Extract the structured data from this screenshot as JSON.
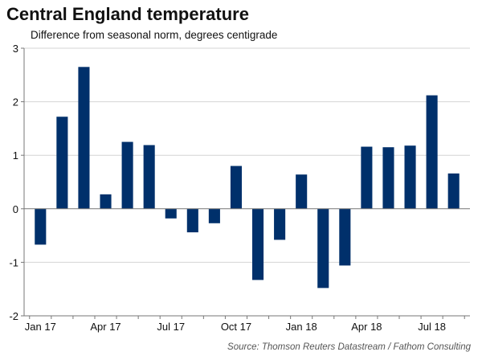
{
  "header": {
    "title": "Central England temperature",
    "subtitle": "Difference from seasonal norm, degrees centigrade"
  },
  "footer": {
    "source": "Source: Thomson Reuters Datastream / Fathom Consulting"
  },
  "colors": {
    "bar": "#00306b",
    "grid": "#d4d4d4",
    "axis": "#777777"
  },
  "chart_data": {
    "type": "bar",
    "title": "Central England temperature",
    "subtitle": "Difference from seasonal norm, degrees centigrade",
    "xlabel": "",
    "ylabel": "",
    "ylim": [
      -2,
      3
    ],
    "yticks": [
      -2,
      -1,
      0,
      1,
      2,
      3
    ],
    "grid": true,
    "categories": [
      "Jan 17",
      "Feb 17",
      "Mar 17",
      "Apr 17",
      "May 17",
      "Jun 17",
      "Jul 17",
      "Aug 17",
      "Sep 17",
      "Oct 17",
      "Nov 17",
      "Dec 17",
      "Jan 18",
      "Feb 18",
      "Mar 18",
      "Apr 18",
      "May 18",
      "Jun 18",
      "Jul 18",
      "Aug 18"
    ],
    "values": [
      -0.67,
      1.72,
      2.65,
      0.27,
      1.25,
      1.19,
      -0.18,
      -0.44,
      -0.27,
      0.8,
      -1.33,
      -0.58,
      0.64,
      -1.48,
      -1.06,
      1.16,
      1.15,
      1.18,
      2.12,
      0.66
    ],
    "xtick_labels": [
      {
        "index": 0,
        "label": "Jan 17"
      },
      {
        "index": 3,
        "label": "Apr 17"
      },
      {
        "index": 6,
        "label": "Jul 17"
      },
      {
        "index": 9,
        "label": "Oct 17"
      },
      {
        "index": 12,
        "label": "Jan 18"
      },
      {
        "index": 15,
        "label": "Apr 18"
      },
      {
        "index": 18,
        "label": "Jul 18"
      }
    ],
    "source": "Source: Thomson Reuters Datastream / Fathom Consulting"
  }
}
